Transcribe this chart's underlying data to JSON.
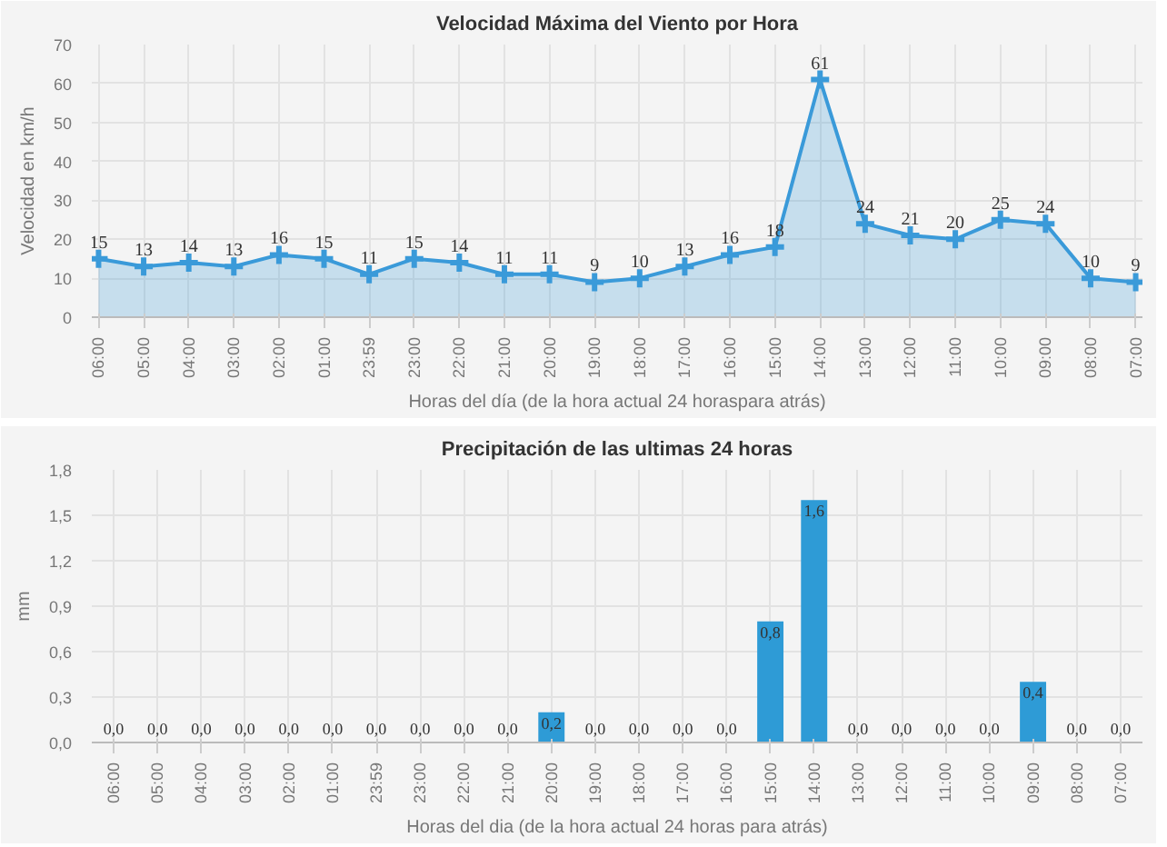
{
  "chart_data": [
    {
      "type": "area",
      "title": "Velocidad Máxima del Viento por Hora",
      "xlabel": "Horas del día (de la hora actual 24 horaspara atrás)",
      "ylabel": "Velocidad en km/h",
      "categories": [
        "06:00",
        "05:00",
        "04:00",
        "03:00",
        "02:00",
        "01:00",
        "23:59",
        "23:00",
        "22:00",
        "21:00",
        "20:00",
        "19:00",
        "18:00",
        "17:00",
        "16:00",
        "15:00",
        "14:00",
        "13:00",
        "12:00",
        "11:00",
        "10:00",
        "09:00",
        "08:00",
        "07:00"
      ],
      "series": [
        {
          "color": "#3a9ad9",
          "values": [
            15,
            13,
            14,
            13,
            16,
            15,
            11,
            15,
            14,
            11,
            11,
            9,
            10,
            13,
            16,
            18,
            61,
            24,
            21,
            20,
            25,
            24,
            10,
            9
          ]
        }
      ],
      "ylim": [
        0,
        70
      ],
      "yticks": [
        0,
        10,
        20,
        30,
        40,
        50,
        60,
        70
      ],
      "grid": true,
      "marker": "cross",
      "data_labels": true
    },
    {
      "type": "bar",
      "title": "Precipitación de las ultimas 24 horas",
      "xlabel": "Horas del dia (de la hora actual 24 horas para atrás)",
      "ylabel": "mm",
      "categories": [
        "06:00",
        "05:00",
        "04:00",
        "03:00",
        "02:00",
        "01:00",
        "23:59",
        "23:00",
        "22:00",
        "21:00",
        "20:00",
        "19:00",
        "18:00",
        "17:00",
        "16:00",
        "15:00",
        "14:00",
        "13:00",
        "12:00",
        "11:00",
        "10:00",
        "09:00",
        "08:00",
        "07:00"
      ],
      "series": [
        {
          "color": "#2e9bd6",
          "values": [
            0,
            0,
            0,
            0,
            0,
            0,
            0,
            0,
            0,
            0,
            0.2,
            0,
            0,
            0,
            0,
            0.8,
            1.6,
            0,
            0,
            0,
            0,
            0.4,
            0,
            0
          ],
          "value_labels": [
            "0,0",
            "0,0",
            "0,0",
            "0,0",
            "0,0",
            "0,0",
            "0,0",
            "0,0",
            "0,0",
            "0,0",
            "0,2",
            "0,0",
            "0,0",
            "0,0",
            "0,0",
            "0,8",
            "1,6",
            "0,0",
            "0,0",
            "0,0",
            "0,0",
            "0,4",
            "0,0",
            "0,0"
          ]
        }
      ],
      "ylim": [
        0,
        1.8
      ],
      "yticks": [
        {
          "value": 0,
          "label": "0,0"
        },
        {
          "value": 0.3,
          "label": "0,3"
        },
        {
          "value": 0.6,
          "label": "0,6"
        },
        {
          "value": 0.9,
          "label": "0,9"
        },
        {
          "value": 1.2,
          "label": "1,2"
        },
        {
          "value": 1.5,
          "label": "1,5"
        },
        {
          "value": 1.8,
          "label": "1,8"
        }
      ],
      "grid": true
    }
  ]
}
